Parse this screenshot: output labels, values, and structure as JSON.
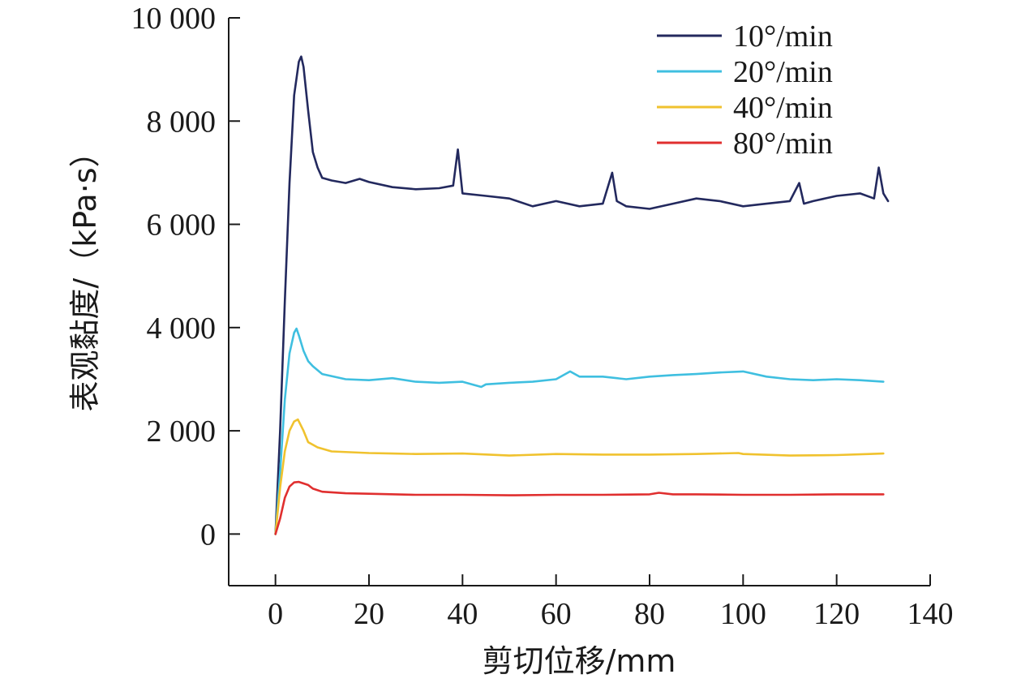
{
  "chart_data": {
    "type": "line",
    "title": "",
    "xlabel": "剪切位移/mm",
    "ylabel": "表观黏度/（kPa·s）",
    "xlim": [
      -10,
      140
    ],
    "ylim": [
      -1000,
      10000
    ],
    "xticks": [
      0,
      20,
      40,
      60,
      80,
      100,
      120,
      140
    ],
    "xtick_labels": [
      "0",
      "20",
      "40",
      "60",
      "80",
      "100",
      "120",
      "140"
    ],
    "yticks": [
      0,
      2000,
      4000,
      6000,
      8000,
      10000
    ],
    "ytick_labels": [
      "0",
      "2 000",
      "4 000",
      "6 000",
      "8 000",
      "10 000"
    ],
    "grid": false,
    "legend_position": "top-right",
    "series": [
      {
        "name": "10°/min",
        "color": "#23295e",
        "points": [
          [
            0,
            0
          ],
          [
            1,
            2000
          ],
          [
            2,
            4500
          ],
          [
            3,
            6800
          ],
          [
            4,
            8500
          ],
          [
            5,
            9150
          ],
          [
            5.5,
            9250
          ],
          [
            6,
            9050
          ],
          [
            7,
            8200
          ],
          [
            8,
            7400
          ],
          [
            9,
            7100
          ],
          [
            10,
            6900
          ],
          [
            12,
            6850
          ],
          [
            15,
            6800
          ],
          [
            18,
            6880
          ],
          [
            20,
            6820
          ],
          [
            25,
            6720
          ],
          [
            30,
            6680
          ],
          [
            35,
            6700
          ],
          [
            38,
            6750
          ],
          [
            39,
            7450
          ],
          [
            40,
            6600
          ],
          [
            45,
            6550
          ],
          [
            50,
            6500
          ],
          [
            55,
            6350
          ],
          [
            60,
            6450
          ],
          [
            65,
            6350
          ],
          [
            70,
            6400
          ],
          [
            72,
            7000
          ],
          [
            73,
            6450
          ],
          [
            75,
            6350
          ],
          [
            80,
            6300
          ],
          [
            85,
            6400
          ],
          [
            90,
            6500
          ],
          [
            95,
            6450
          ],
          [
            100,
            6350
          ],
          [
            105,
            6400
          ],
          [
            110,
            6450
          ],
          [
            112,
            6800
          ],
          [
            113,
            6400
          ],
          [
            115,
            6450
          ],
          [
            120,
            6550
          ],
          [
            125,
            6600
          ],
          [
            128,
            6500
          ],
          [
            129,
            7100
          ],
          [
            130,
            6600
          ],
          [
            131,
            6450
          ]
        ]
      },
      {
        "name": "20°/min",
        "color": "#3fbfe0",
        "points": [
          [
            0,
            0
          ],
          [
            1,
            1200
          ],
          [
            2,
            2600
          ],
          [
            3,
            3500
          ],
          [
            4,
            3900
          ],
          [
            4.5,
            3980
          ],
          [
            5,
            3850
          ],
          [
            6,
            3550
          ],
          [
            7,
            3350
          ],
          [
            8,
            3250
          ],
          [
            10,
            3100
          ],
          [
            15,
            3000
          ],
          [
            20,
            2980
          ],
          [
            25,
            3020
          ],
          [
            30,
            2950
          ],
          [
            35,
            2930
          ],
          [
            40,
            2950
          ],
          [
            44,
            2850
          ],
          [
            45,
            2900
          ],
          [
            50,
            2930
          ],
          [
            55,
            2950
          ],
          [
            60,
            3000
          ],
          [
            63,
            3150
          ],
          [
            65,
            3050
          ],
          [
            70,
            3050
          ],
          [
            75,
            3000
          ],
          [
            80,
            3050
          ],
          [
            85,
            3080
          ],
          [
            90,
            3100
          ],
          [
            95,
            3130
          ],
          [
            100,
            3150
          ],
          [
            105,
            3050
          ],
          [
            110,
            3000
          ],
          [
            115,
            2980
          ],
          [
            120,
            3000
          ],
          [
            125,
            2980
          ],
          [
            130,
            2950
          ]
        ]
      },
      {
        "name": "40°/min",
        "color": "#f0c22e",
        "points": [
          [
            0,
            0
          ],
          [
            1,
            900
          ],
          [
            2,
            1600
          ],
          [
            3,
            2000
          ],
          [
            4,
            2180
          ],
          [
            4.8,
            2220
          ],
          [
            6,
            2000
          ],
          [
            7,
            1780
          ],
          [
            9,
            1680
          ],
          [
            12,
            1600
          ],
          [
            20,
            1570
          ],
          [
            25,
            1560
          ],
          [
            30,
            1550
          ],
          [
            40,
            1560
          ],
          [
            50,
            1520
          ],
          [
            60,
            1550
          ],
          [
            70,
            1540
          ],
          [
            80,
            1540
          ],
          [
            90,
            1550
          ],
          [
            99,
            1570
          ],
          [
            100,
            1550
          ],
          [
            110,
            1520
          ],
          [
            120,
            1530
          ],
          [
            127,
            1550
          ],
          [
            130,
            1560
          ]
        ]
      },
      {
        "name": "80°/min",
        "color": "#e02f2f",
        "points": [
          [
            0,
            0
          ],
          [
            1,
            300
          ],
          [
            2,
            700
          ],
          [
            3,
            920
          ],
          [
            4,
            1000
          ],
          [
            5,
            1010
          ],
          [
            6,
            980
          ],
          [
            7,
            950
          ],
          [
            8,
            880
          ],
          [
            10,
            820
          ],
          [
            15,
            790
          ],
          [
            20,
            780
          ],
          [
            30,
            760
          ],
          [
            40,
            760
          ],
          [
            50,
            750
          ],
          [
            60,
            760
          ],
          [
            70,
            760
          ],
          [
            80,
            770
          ],
          [
            82,
            800
          ],
          [
            85,
            770
          ],
          [
            90,
            770
          ],
          [
            100,
            760
          ],
          [
            110,
            760
          ],
          [
            120,
            770
          ],
          [
            130,
            770
          ]
        ]
      }
    ]
  }
}
